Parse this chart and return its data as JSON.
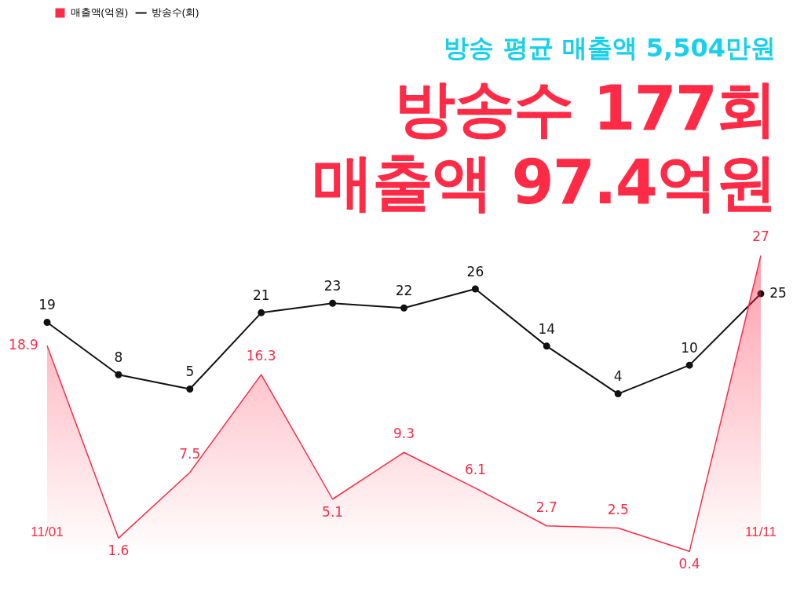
{
  "chart_data": {
    "type": "area",
    "subtitle": "방송 평균 매출액 5,504만원",
    "title": "방송수 177회\n매출액 97.4억원",
    "categories": [
      "11/01",
      null,
      null,
      null,
      null,
      null,
      null,
      null,
      null,
      null,
      "11/11"
    ],
    "series": [
      {
        "name": "매출액(억원)",
        "color": "#ff2a45",
        "values": [
          18.9,
          1.6,
          7.5,
          16.3,
          5.1,
          9.3,
          6.1,
          2.7,
          2.5,
          0.4,
          27
        ]
      },
      {
        "name": "방송수(회)",
        "type": "line",
        "marker": "circle",
        "color": "#111111",
        "axis": "y2",
        "values": [
          19,
          8,
          5,
          21,
          23,
          22,
          26,
          14,
          4,
          10,
          25
        ]
      }
    ],
    "data_labels": true,
    "tick_labels": "x",
    "grid": false,
    "legend": "top left"
  }
}
